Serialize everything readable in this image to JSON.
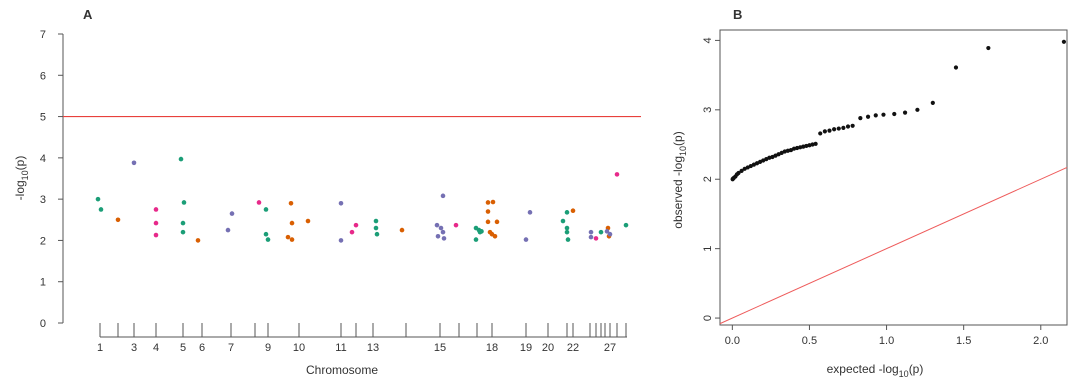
{
  "panels": {
    "a": {
      "letter": "A"
    },
    "b": {
      "letter": "B"
    }
  },
  "colors": {
    "threshold": "#e8413c",
    "diagonal": "#ee5b5b",
    "qq_points": "#111111",
    "chrom_palette": [
      "#1b9e77",
      "#d95f02",
      "#7570b3",
      "#e7298a"
    ]
  },
  "chart_data": [
    {
      "type": "scatter",
      "panel": "A",
      "xlabel": "Chromosome",
      "ylabel_text": "-log",
      "ylabel_sub": "10",
      "ylabel_tail": "(p)",
      "ylim": [
        0,
        7
      ],
      "yticks": [
        0,
        1,
        2,
        3,
        4,
        5,
        6,
        7
      ],
      "threshold": 5,
      "grid": false,
      "chromosomes": [
        "1",
        "2",
        "3",
        "4",
        "5",
        "6",
        "7",
        "8",
        "9",
        "10",
        "11",
        "12",
        "13",
        "14",
        "15",
        "16",
        "17",
        "18",
        "19",
        "20",
        "21",
        "22",
        "23",
        "24",
        "25",
        "26",
        "27",
        "28",
        "29"
      ],
      "labeled_chromosomes": [
        "1",
        "3",
        "4",
        "5",
        "6",
        "7",
        "9",
        "10",
        "11",
        "13",
        "15",
        "18",
        "19",
        "20",
        "22",
        "27"
      ],
      "points": [
        {
          "chr": 1,
          "offset": -0.2,
          "y": 3.0
        },
        {
          "chr": 1,
          "offset": 0.1,
          "y": 2.75
        },
        {
          "chr": 2,
          "offset": 0.0,
          "y": 2.5
        },
        {
          "chr": 3,
          "offset": 0.0,
          "y": 3.88
        },
        {
          "chr": 4,
          "offset": 0.0,
          "y": 2.75
        },
        {
          "chr": 4,
          "offset": 0.0,
          "y": 2.42
        },
        {
          "chr": 4,
          "offset": 0.0,
          "y": 2.13
        },
        {
          "chr": 5,
          "offset": -0.2,
          "y": 3.97
        },
        {
          "chr": 5,
          "offset": 0.1,
          "y": 2.92
        },
        {
          "chr": 5,
          "offset": 0.0,
          "y": 2.42
        },
        {
          "chr": 5,
          "offset": 0.0,
          "y": 2.2
        },
        {
          "chr": 6,
          "offset": -0.4,
          "y": 2.0
        },
        {
          "chr": 7,
          "offset": -0.3,
          "y": 2.25
        },
        {
          "chr": 7,
          "offset": 0.1,
          "y": 2.65
        },
        {
          "chr": 8,
          "offset": 0.4,
          "y": 2.92
        },
        {
          "chr": 9,
          "offset": -0.2,
          "y": 2.75
        },
        {
          "chr": 9,
          "offset": -0.2,
          "y": 2.15
        },
        {
          "chr": 9,
          "offset": 0.0,
          "y": 2.02
        },
        {
          "chr": 10,
          "offset": -1.1,
          "y": 2.08
        },
        {
          "chr": 10,
          "offset": -0.8,
          "y": 2.9
        },
        {
          "chr": 10,
          "offset": -0.7,
          "y": 2.42
        },
        {
          "chr": 10,
          "offset": -0.7,
          "y": 2.02
        },
        {
          "chr": 10,
          "offset": 0.9,
          "y": 2.47
        },
        {
          "chr": 11,
          "offset": 0.0,
          "y": 2.9
        },
        {
          "chr": 11,
          "offset": 0.0,
          "y": 2.0
        },
        {
          "chr": 12,
          "offset": -0.4,
          "y": 2.2
        },
        {
          "chr": 12,
          "offset": 0.0,
          "y": 2.37
        },
        {
          "chr": 13,
          "offset": 0.3,
          "y": 2.47
        },
        {
          "chr": 13,
          "offset": 0.3,
          "y": 2.3
        },
        {
          "chr": 13,
          "offset": 0.4,
          "y": 2.15
        },
        {
          "chr": 14,
          "offset": -0.4,
          "y": 2.25
        },
        {
          "chr": 15,
          "offset": -0.3,
          "y": 2.37
        },
        {
          "chr": 15,
          "offset": -0.2,
          "y": 2.1
        },
        {
          "chr": 15,
          "offset": 0.1,
          "y": 2.3
        },
        {
          "chr": 15,
          "offset": 0.3,
          "y": 3.08
        },
        {
          "chr": 15,
          "offset": 0.3,
          "y": 2.2
        },
        {
          "chr": 15,
          "offset": 0.4,
          "y": 2.05
        },
        {
          "chr": 16,
          "offset": -0.3,
          "y": 2.37
        },
        {
          "chr": 17,
          "offset": -0.1,
          "y": 2.3
        },
        {
          "chr": 17,
          "offset": -0.1,
          "y": 2.02
        },
        {
          "chr": 17,
          "offset": 0.2,
          "y": 2.25
        },
        {
          "chr": 17,
          "offset": 0.3,
          "y": 2.2
        },
        {
          "chr": 17,
          "offset": 0.45,
          "y": 2.22
        },
        {
          "chr": 18,
          "offset": -0.4,
          "y": 2.92
        },
        {
          "chr": 18,
          "offset": -0.4,
          "y": 2.7
        },
        {
          "chr": 18,
          "offset": -0.4,
          "y": 2.45
        },
        {
          "chr": 18,
          "offset": -0.2,
          "y": 2.2
        },
        {
          "chr": 18,
          "offset": 0.1,
          "y": 2.93
        },
        {
          "chr": 18,
          "offset": 0.0,
          "y": 2.15
        },
        {
          "chr": 18,
          "offset": 0.3,
          "y": 2.1
        },
        {
          "chr": 18,
          "offset": 0.5,
          "y": 2.45
        },
        {
          "chr": 19,
          "offset": 0.0,
          "y": 2.02
        },
        {
          "chr": 19,
          "offset": 0.4,
          "y": 2.68
        },
        {
          "chr": 21,
          "offset": -0.4,
          "y": 2.47
        },
        {
          "chr": 21,
          "offset": 0.0,
          "y": 2.68
        },
        {
          "chr": 21,
          "offset": 0.0,
          "y": 2.3
        },
        {
          "chr": 21,
          "offset": 0.0,
          "y": 2.2
        },
        {
          "chr": 21,
          "offset": 0.1,
          "y": 2.02
        },
        {
          "chr": 22,
          "offset": 0.0,
          "y": 2.72
        },
        {
          "chr": 23,
          "offset": 0.1,
          "y": 2.2
        },
        {
          "chr": 23,
          "offset": 0.1,
          "y": 2.08
        },
        {
          "chr": 24,
          "offset": 0.0,
          "y": 2.05
        },
        {
          "chr": 25,
          "offset": 0.0,
          "y": 2.2
        },
        {
          "chr": 26,
          "offset": 0.3,
          "y": 2.3
        },
        {
          "chr": 26,
          "offset": 0.4,
          "y": 2.1
        },
        {
          "chr": 27,
          "offset": -0.3,
          "y": 2.22
        },
        {
          "chr": 27,
          "offset": 0.0,
          "y": 2.15
        },
        {
          "chr": 28,
          "offset": 0.0,
          "y": 3.6
        },
        {
          "chr": 29,
          "offset": 0.0,
          "y": 2.37
        }
      ]
    },
    {
      "type": "scatter",
      "panel": "B",
      "xlabel_text": "expected -log",
      "xlabel_sub": "10",
      "xlabel_tail": "(p)",
      "ylabel_text": "observed -log",
      "ylabel_sub": "10",
      "ylabel_tail": "(p)",
      "xlim": [
        -0.08,
        2.17
      ],
      "ylim": [
        -0.1,
        4.15
      ],
      "xticks": [
        0.0,
        0.5,
        1.0,
        1.5,
        2.0
      ],
      "xtick_labels": [
        "0.0",
        "0.5",
        "1.0",
        "1.5",
        "2.0"
      ],
      "yticks": [
        0,
        1,
        2,
        3,
        4
      ],
      "grid": false,
      "diagonal": {
        "slope": 1,
        "intercept": 0
      },
      "qq_points": [
        [
          2.15,
          3.98
        ],
        [
          1.66,
          3.89
        ],
        [
          1.45,
          3.61
        ],
        [
          1.3,
          3.1
        ],
        [
          1.2,
          3.0
        ],
        [
          1.12,
          2.96
        ],
        [
          1.05,
          2.94
        ],
        [
          0.98,
          2.93
        ],
        [
          0.93,
          2.92
        ],
        [
          0.88,
          2.9
        ],
        [
          0.83,
          2.88
        ],
        [
          0.78,
          2.77
        ],
        [
          0.75,
          2.76
        ],
        [
          0.72,
          2.74
        ],
        [
          0.69,
          2.73
        ],
        [
          0.66,
          2.72
        ],
        [
          0.63,
          2.7
        ],
        [
          0.6,
          2.69
        ],
        [
          0.57,
          2.66
        ],
        [
          0.54,
          2.51
        ],
        [
          0.52,
          2.5
        ],
        [
          0.5,
          2.49
        ],
        [
          0.48,
          2.48
        ],
        [
          0.46,
          2.47
        ],
        [
          0.44,
          2.46
        ],
        [
          0.42,
          2.45
        ],
        [
          0.4,
          2.44
        ],
        [
          0.38,
          2.42
        ],
        [
          0.36,
          2.41
        ],
        [
          0.34,
          2.4
        ],
        [
          0.32,
          2.38
        ],
        [
          0.3,
          2.36
        ],
        [
          0.28,
          2.34
        ],
        [
          0.26,
          2.32
        ],
        [
          0.24,
          2.31
        ],
        [
          0.22,
          2.29
        ],
        [
          0.2,
          2.27
        ],
        [
          0.18,
          2.25
        ],
        [
          0.16,
          2.23
        ],
        [
          0.14,
          2.21
        ],
        [
          0.12,
          2.19
        ],
        [
          0.1,
          2.17
        ],
        [
          0.08,
          2.15
        ],
        [
          0.06,
          2.12
        ],
        [
          0.04,
          2.09
        ],
        [
          0.03,
          2.07
        ],
        [
          0.02,
          2.04
        ],
        [
          0.01,
          2.02
        ],
        [
          0.005,
          2.01
        ],
        [
          0.002,
          2.0
        ]
      ]
    }
  ]
}
